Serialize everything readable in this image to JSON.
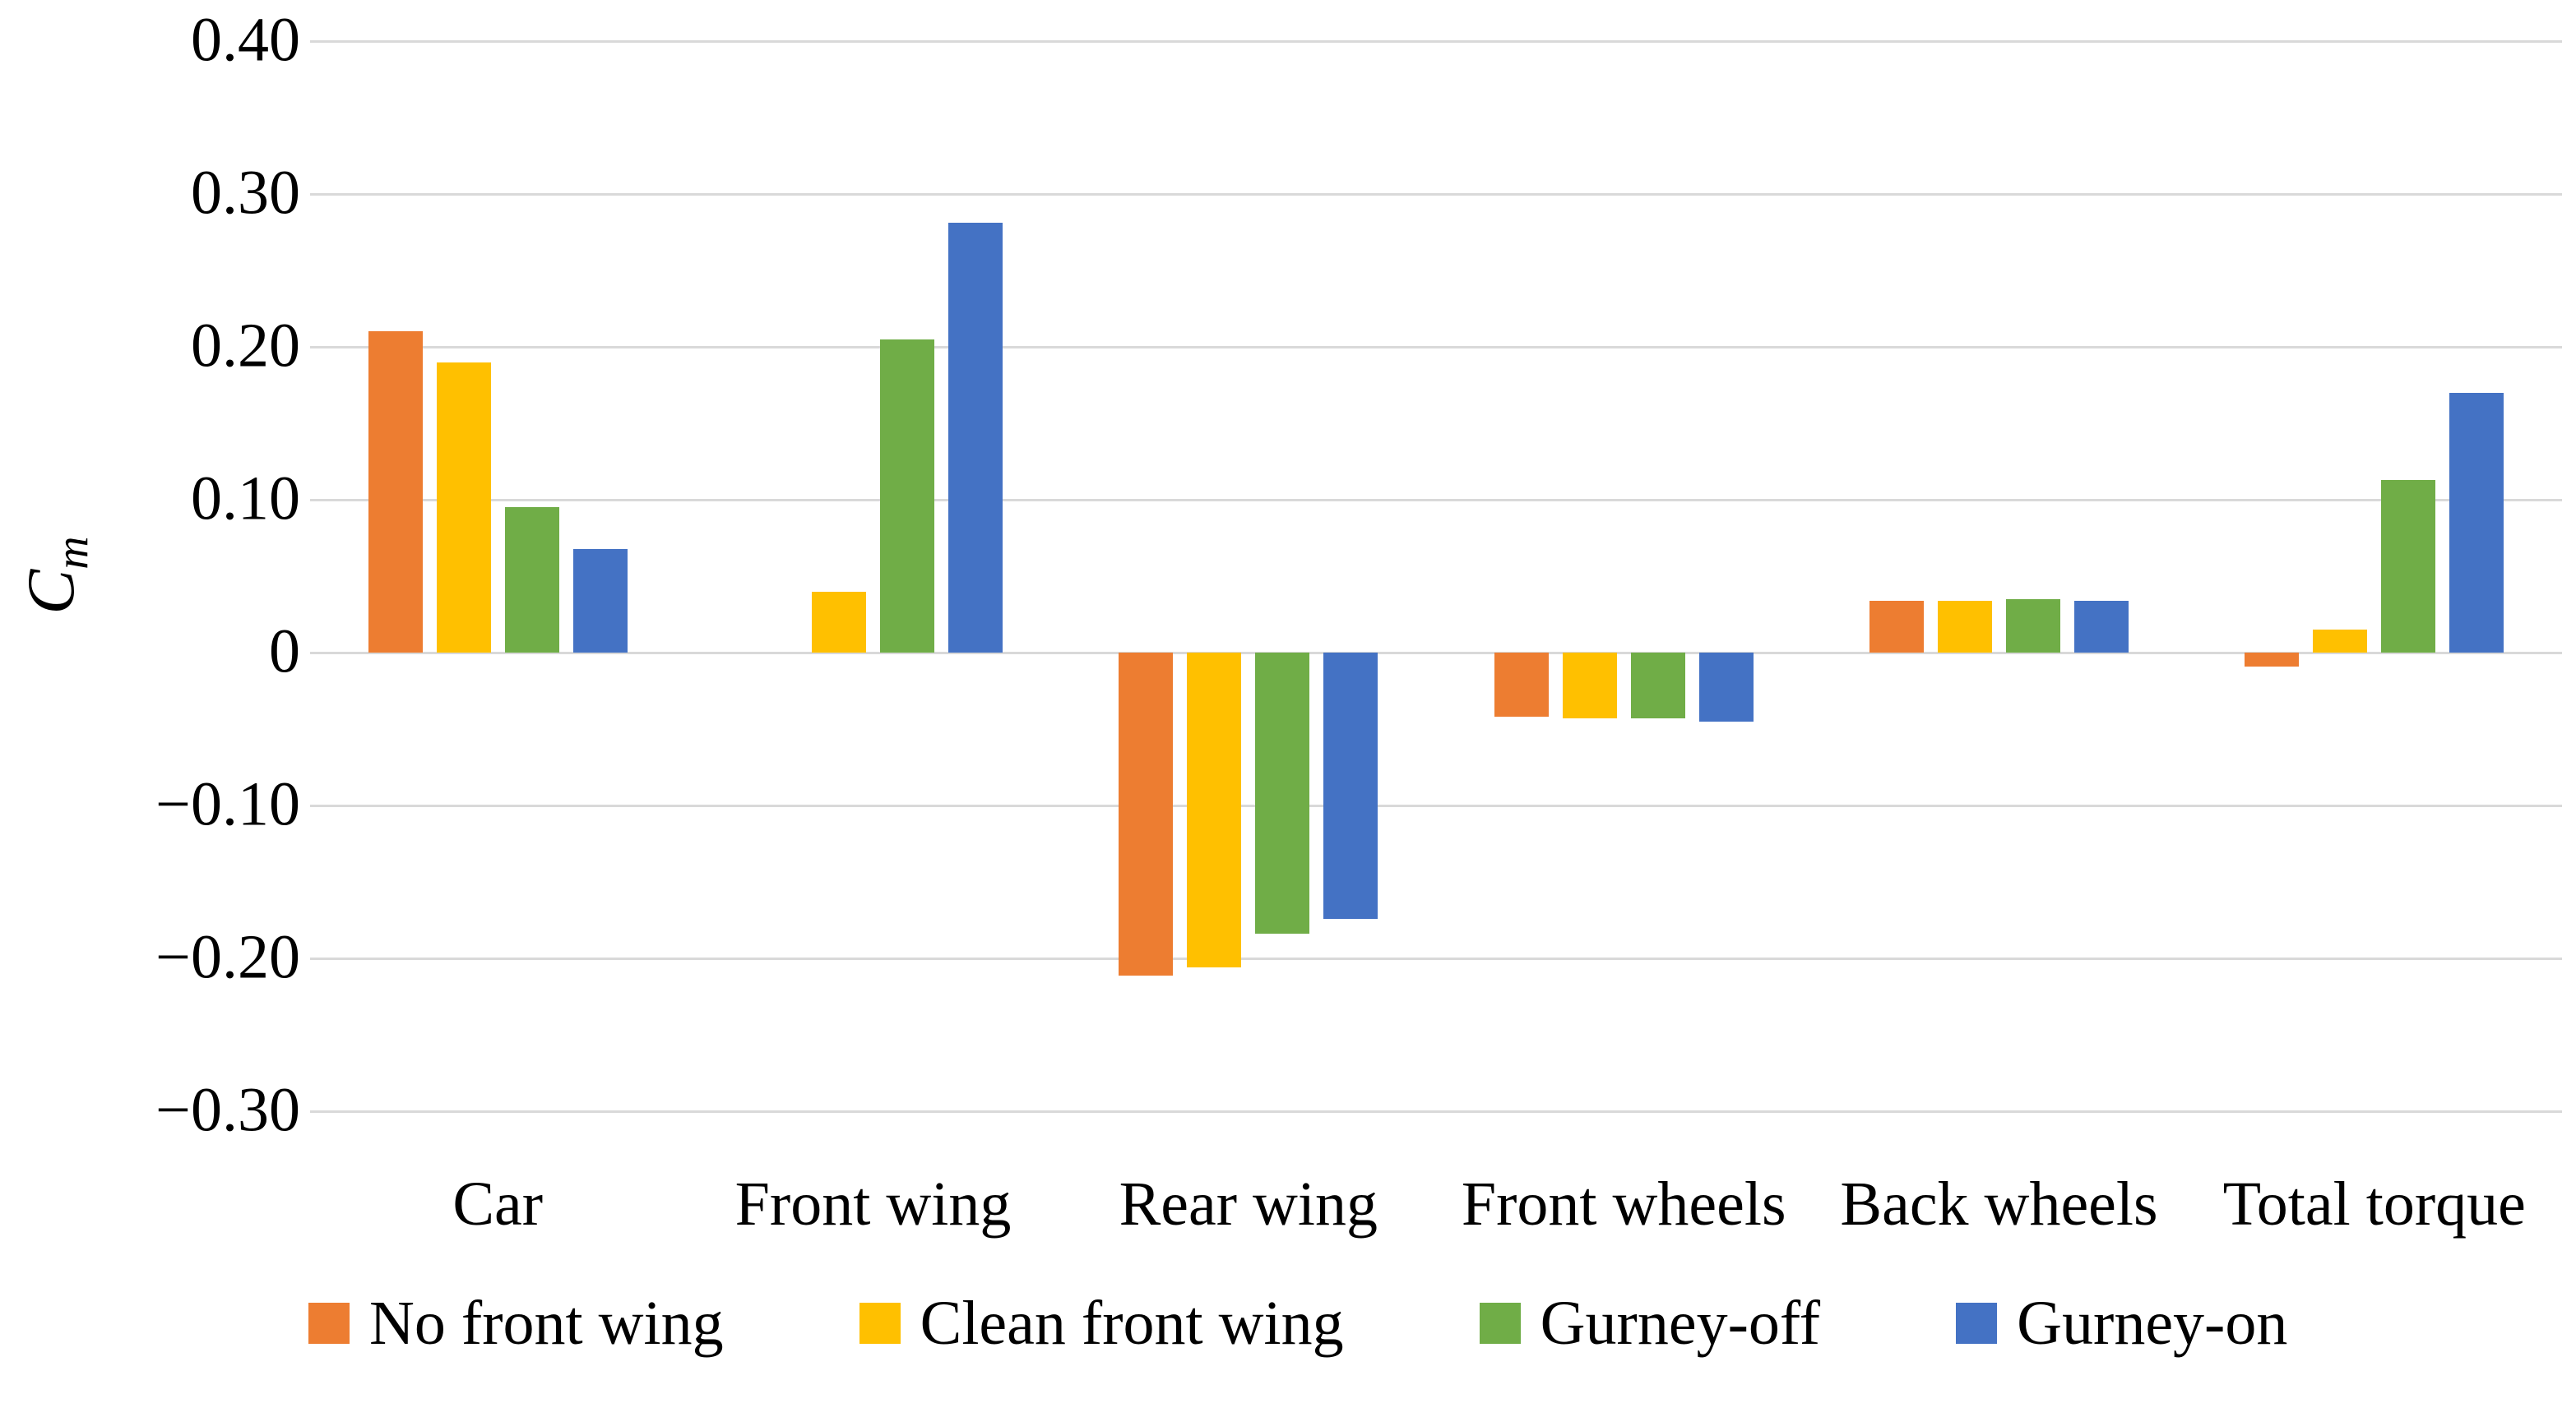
{
  "chart_data": {
    "type": "bar",
    "title": "",
    "y_axis": {
      "title_main": "C",
      "title_sub": "m",
      "min": -0.3,
      "max": 0.4,
      "gridlines": true,
      "grid_color": "#D9D9D9"
    },
    "y_ticks": [
      {
        "label": "0.40",
        "value": 0.4
      },
      {
        "label": "0.30",
        "value": 0.3
      },
      {
        "label": "0.20",
        "value": 0.2
      },
      {
        "label": "0.10",
        "value": 0.1
      },
      {
        "label": "0",
        "value": 0
      },
      {
        "label": "−0.10",
        "value": -0.1
      },
      {
        "label": "−0.20",
        "value": -0.2
      },
      {
        "label": "−0.30",
        "value": -0.3
      }
    ],
    "categories": [
      "Car",
      "Front wing",
      "Rear wing",
      "Front wheels",
      "Back wheels",
      "Total torque"
    ],
    "series": [
      {
        "name": "No front wing",
        "color": "#ED7D31",
        "values": [
          0.21,
          0,
          -0.211,
          -0.042,
          0.034,
          -0.009
        ]
      },
      {
        "name": "Clean front wing",
        "color": "#FFC000",
        "values": [
          0.19,
          0.04,
          -0.206,
          -0.043,
          0.034,
          0.015
        ]
      },
      {
        "name": "Gurney-off",
        "color": "#70AD47",
        "values": [
          0.095,
          0.205,
          -0.184,
          -0.043,
          0.035,
          0.113
        ]
      },
      {
        "name": "Gurney-on",
        "color": "#4472C4",
        "values": [
          0.068,
          0.281,
          -0.174,
          -0.045,
          0.034,
          0.17
        ]
      }
    ],
    "legend_position": "bottom",
    "xlabel": "",
    "ylabel": "Cm"
  }
}
